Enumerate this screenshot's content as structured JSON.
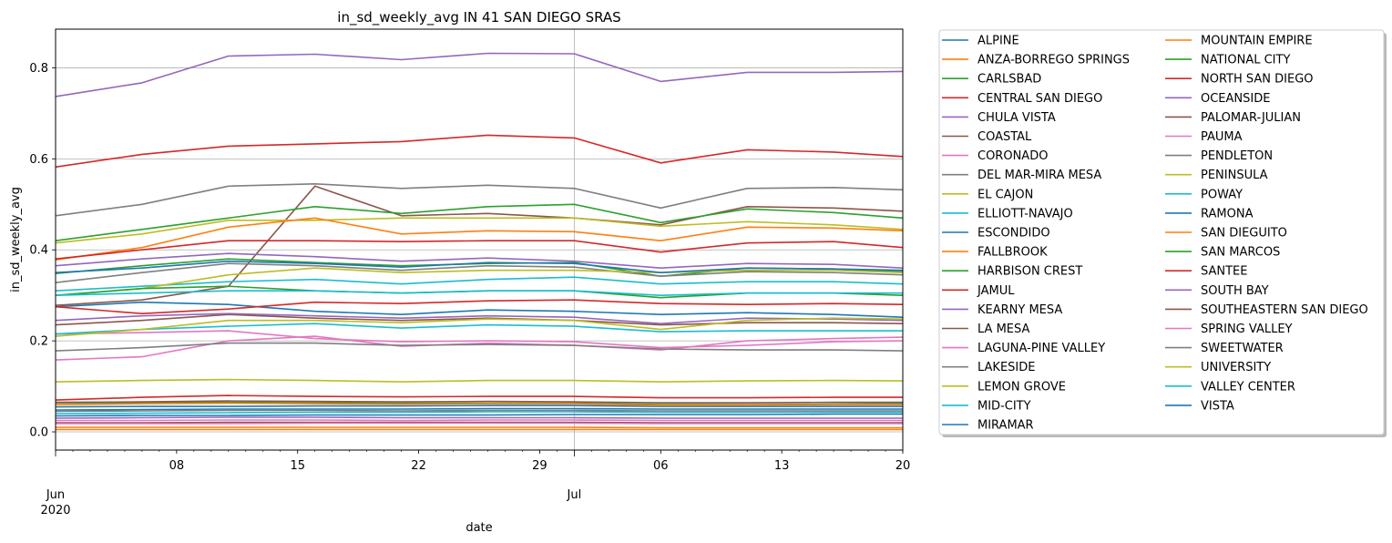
{
  "chart_data": {
    "type": "line",
    "title": "in_sd_weekly_avg IN 41 SAN DIEGO SRAS",
    "xlabel": "date",
    "ylabel": "in_sd_weekly_avg",
    "x_range": [
      "2020-06-01",
      "2020-07-20"
    ],
    "ylim": [
      -0.04,
      0.885
    ],
    "grid": "vertical at month start and horizontal at major y ticks",
    "legend_position": "outside right, two columns",
    "x_ticks": [
      {
        "date": "2020-06-01",
        "label": "Jun",
        "sublabel": "2020",
        "major": true
      },
      {
        "date": "2020-06-08",
        "label": "08"
      },
      {
        "date": "2020-06-15",
        "label": "15"
      },
      {
        "date": "2020-06-22",
        "label": "22"
      },
      {
        "date": "2020-06-29",
        "label": "29"
      },
      {
        "date": "2020-07-01",
        "label": "Jul",
        "major": true
      },
      {
        "date": "2020-07-06",
        "label": "06"
      },
      {
        "date": "2020-07-13",
        "label": "13"
      },
      {
        "date": "2020-07-20",
        "label": "20"
      }
    ],
    "y_ticks": [
      0.0,
      0.2,
      0.4,
      0.6,
      0.8
    ],
    "y_tick_labels": [
      "0.0",
      "0.2",
      "0.4",
      "0.6",
      "0.8"
    ],
    "x": [
      "2020-06-01",
      "2020-06-06",
      "2020-06-11",
      "2020-06-16",
      "2020-06-21",
      "2020-06-26",
      "2020-07-01",
      "2020-07-06",
      "2020-07-11",
      "2020-07-16",
      "2020-07-20"
    ],
    "series": [
      {
        "name": "ALPINE",
        "color": "#1f77b4",
        "values": [
          0.055,
          0.056,
          0.056,
          0.057,
          0.057,
          0.058,
          0.058,
          0.056,
          0.056,
          0.056,
          0.056
        ]
      },
      {
        "name": "ANZA-BORREGO SPRINGS",
        "color": "#ff7f0e",
        "values": [
          0.005,
          0.005,
          0.005,
          0.005,
          0.005,
          0.005,
          0.005,
          0.005,
          0.005,
          0.005,
          0.005
        ]
      },
      {
        "name": "CARLSBAD",
        "color": "#2ca02c",
        "values": [
          0.064,
          0.064,
          0.065,
          0.064,
          0.063,
          0.063,
          0.063,
          0.06,
          0.06,
          0.061,
          0.062
        ]
      },
      {
        "name": "CENTRAL SAN DIEGO",
        "color": "#d62728",
        "values": [
          0.582,
          0.61,
          0.628,
          0.633,
          0.638,
          0.652,
          0.646,
          0.591,
          0.62,
          0.615,
          0.605
        ]
      },
      {
        "name": "CHULA VISTA",
        "color": "#9467bd",
        "values": [
          0.737,
          0.767,
          0.826,
          0.83,
          0.818,
          0.832,
          0.831,
          0.77,
          0.79,
          0.79,
          0.792
        ]
      },
      {
        "name": "COASTAL",
        "color": "#8c564b",
        "values": [
          0.278,
          0.29,
          0.32,
          0.54,
          0.475,
          0.48,
          0.47,
          0.455,
          0.495,
          0.492,
          0.485
        ]
      },
      {
        "name": "CORONADO",
        "color": "#e377c2",
        "values": [
          0.215,
          0.218,
          0.222,
          0.205,
          0.198,
          0.2,
          0.198,
          0.185,
          0.19,
          0.198,
          0.2
        ]
      },
      {
        "name": "DEL MAR-MIRA MESA",
        "color": "#7f7f7f",
        "values": [
          0.475,
          0.5,
          0.54,
          0.545,
          0.535,
          0.542,
          0.535,
          0.492,
          0.535,
          0.537,
          0.532
        ]
      },
      {
        "name": "EL CAJON",
        "color": "#bcbd22",
        "values": [
          0.415,
          0.435,
          0.465,
          0.465,
          0.47,
          0.47,
          0.47,
          0.452,
          0.462,
          0.455,
          0.445
        ]
      },
      {
        "name": "ELLIOTT-NAVAJO",
        "color": "#17becf",
        "values": [
          0.31,
          0.32,
          0.33,
          0.335,
          0.325,
          0.335,
          0.34,
          0.325,
          0.33,
          0.33,
          0.325
        ]
      },
      {
        "name": "ESCONDIDO",
        "color": "#1f77b4",
        "values": [
          0.275,
          0.285,
          0.28,
          0.265,
          0.258,
          0.268,
          0.265,
          0.258,
          0.262,
          0.258,
          0.252
        ]
      },
      {
        "name": "FALLBROOK",
        "color": "#ff7f0e",
        "values": [
          0.378,
          0.405,
          0.45,
          0.47,
          0.435,
          0.442,
          0.44,
          0.42,
          0.45,
          0.448,
          0.442
        ]
      },
      {
        "name": "HARBISON CREST",
        "color": "#2ca02c",
        "values": [
          0.42,
          0.445,
          0.47,
          0.495,
          0.48,
          0.495,
          0.5,
          0.46,
          0.49,
          0.482,
          0.47
        ]
      },
      {
        "name": "JAMUL",
        "color": "#d62728",
        "values": [
          0.275,
          0.26,
          0.27,
          0.285,
          0.282,
          0.288,
          0.29,
          0.282,
          0.28,
          0.282,
          0.28
        ]
      },
      {
        "name": "KEARNY MESA",
        "color": "#9467bd",
        "values": [
          0.365,
          0.38,
          0.392,
          0.385,
          0.375,
          0.382,
          0.375,
          0.36,
          0.37,
          0.368,
          0.36
        ]
      },
      {
        "name": "LA MESA",
        "color": "#8c564b",
        "values": [
          0.235,
          0.245,
          0.258,
          0.25,
          0.245,
          0.25,
          0.245,
          0.235,
          0.24,
          0.24,
          0.238
        ]
      },
      {
        "name": "LAGUNA-PINE VALLEY",
        "color": "#e377c2",
        "values": [
          0.158,
          0.165,
          0.2,
          0.21,
          0.188,
          0.195,
          0.19,
          0.18,
          0.2,
          0.205,
          0.208
        ]
      },
      {
        "name": "LAKESIDE",
        "color": "#7f7f7f",
        "values": [
          0.178,
          0.185,
          0.195,
          0.195,
          0.19,
          0.192,
          0.19,
          0.182,
          0.18,
          0.18,
          0.178
        ]
      },
      {
        "name": "LEMON GROVE",
        "color": "#bcbd22",
        "values": [
          0.11,
          0.113,
          0.115,
          0.113,
          0.11,
          0.113,
          0.113,
          0.11,
          0.112,
          0.113,
          0.112
        ]
      },
      {
        "name": "MID-CITY",
        "color": "#17becf",
        "values": [
          0.215,
          0.225,
          0.232,
          0.238,
          0.228,
          0.235,
          0.232,
          0.22,
          0.222,
          0.222,
          0.222
        ]
      },
      {
        "name": "MIRAMAR",
        "color": "#1f77b4",
        "values": [
          0.035,
          0.036,
          0.036,
          0.037,
          0.037,
          0.037,
          0.038,
          0.038,
          0.038,
          0.039,
          0.039
        ]
      },
      {
        "name": "MOUNTAIN EMPIRE",
        "color": "#ff7f0e",
        "values": [
          0.01,
          0.01,
          0.01,
          0.01,
          0.01,
          0.01,
          0.01,
          0.009,
          0.009,
          0.009,
          0.009
        ]
      },
      {
        "name": "NATIONAL CITY",
        "color": "#2ca02c",
        "values": [
          0.348,
          0.365,
          0.38,
          0.372,
          0.365,
          0.37,
          0.372,
          0.342,
          0.36,
          0.358,
          0.352
        ]
      },
      {
        "name": "NORTH SAN DIEGO",
        "color": "#d62728",
        "values": [
          0.38,
          0.4,
          0.42,
          0.42,
          0.418,
          0.42,
          0.42,
          0.395,
          0.415,
          0.418,
          0.405
        ]
      },
      {
        "name": "OCEANSIDE",
        "color": "#9467bd",
        "values": [
          0.245,
          0.255,
          0.26,
          0.255,
          0.25,
          0.255,
          0.252,
          0.238,
          0.25,
          0.248,
          0.245
        ]
      },
      {
        "name": "PALOMAR-JULIAN",
        "color": "#8c564b",
        "values": [
          0.02,
          0.02,
          0.021,
          0.021,
          0.021,
          0.021,
          0.021,
          0.02,
          0.02,
          0.02,
          0.02
        ]
      },
      {
        "name": "PAUMA",
        "color": "#e377c2",
        "values": [
          0.018,
          0.018,
          0.018,
          0.019,
          0.019,
          0.019,
          0.019,
          0.018,
          0.018,
          0.018,
          0.018
        ]
      },
      {
        "name": "PENDLETON",
        "color": "#7f7f7f",
        "values": [
          0.328,
          0.35,
          0.37,
          0.365,
          0.355,
          0.365,
          0.362,
          0.342,
          0.352,
          0.35,
          0.345
        ]
      },
      {
        "name": "PENINSULA",
        "color": "#bcbd22",
        "values": [
          0.3,
          0.315,
          0.345,
          0.36,
          0.35,
          0.355,
          0.355,
          0.35,
          0.355,
          0.355,
          0.35
        ]
      },
      {
        "name": "POWAY",
        "color": "#17becf",
        "values": [
          0.04,
          0.041,
          0.042,
          0.043,
          0.043,
          0.044,
          0.044,
          0.043,
          0.043,
          0.043,
          0.043
        ]
      },
      {
        "name": "RAMONA",
        "color": "#1f77b4",
        "values": [
          0.048,
          0.049,
          0.05,
          0.05,
          0.05,
          0.051,
          0.051,
          0.05,
          0.05,
          0.05,
          0.05
        ]
      },
      {
        "name": "SAN DIEGUITO",
        "color": "#ff7f0e",
        "values": [
          0.06,
          0.062,
          0.063,
          0.062,
          0.061,
          0.062,
          0.062,
          0.058,
          0.059,
          0.06,
          0.06
        ]
      },
      {
        "name": "SAN MARCOS",
        "color": "#2ca02c",
        "values": [
          0.3,
          0.315,
          0.32,
          0.31,
          0.305,
          0.31,
          0.31,
          0.295,
          0.305,
          0.305,
          0.3
        ]
      },
      {
        "name": "SANTEE",
        "color": "#d62728",
        "values": [
          0.07,
          0.076,
          0.08,
          0.078,
          0.077,
          0.078,
          0.078,
          0.075,
          0.075,
          0.076,
          0.076
        ]
      },
      {
        "name": "SOUTH BAY",
        "color": "#9467bd",
        "values": [
          0.03,
          0.031,
          0.032,
          0.032,
          0.031,
          0.031,
          0.031,
          0.03,
          0.03,
          0.03,
          0.03
        ]
      },
      {
        "name": "SOUTHEASTERN SAN DIEGO",
        "color": "#8c564b",
        "values": [
          0.065,
          0.066,
          0.068,
          0.067,
          0.066,
          0.067,
          0.066,
          0.064,
          0.064,
          0.065,
          0.065
        ]
      },
      {
        "name": "SPRING VALLEY",
        "color": "#e377c2",
        "values": [
          0.025,
          0.025,
          0.026,
          0.026,
          0.025,
          0.026,
          0.026,
          0.025,
          0.025,
          0.025,
          0.025
        ]
      },
      {
        "name": "SWEETWATER",
        "color": "#7f7f7f",
        "values": [
          0.045,
          0.046,
          0.047,
          0.047,
          0.046,
          0.047,
          0.047,
          0.046,
          0.046,
          0.046,
          0.046
        ]
      },
      {
        "name": "UNIVERSITY",
        "color": "#bcbd22",
        "values": [
          0.21,
          0.225,
          0.245,
          0.245,
          0.24,
          0.248,
          0.245,
          0.225,
          0.245,
          0.25,
          0.248
        ]
      },
      {
        "name": "VALLEY CENTER",
        "color": "#17becf",
        "values": [
          0.3,
          0.305,
          0.31,
          0.31,
          0.305,
          0.31,
          0.31,
          0.3,
          0.305,
          0.305,
          0.305
        ]
      },
      {
        "name": "VISTA",
        "color": "#1f77b4",
        "values": [
          0.35,
          0.36,
          0.375,
          0.37,
          0.362,
          0.372,
          0.37,
          0.35,
          0.36,
          0.358,
          0.355
        ]
      }
    ]
  }
}
